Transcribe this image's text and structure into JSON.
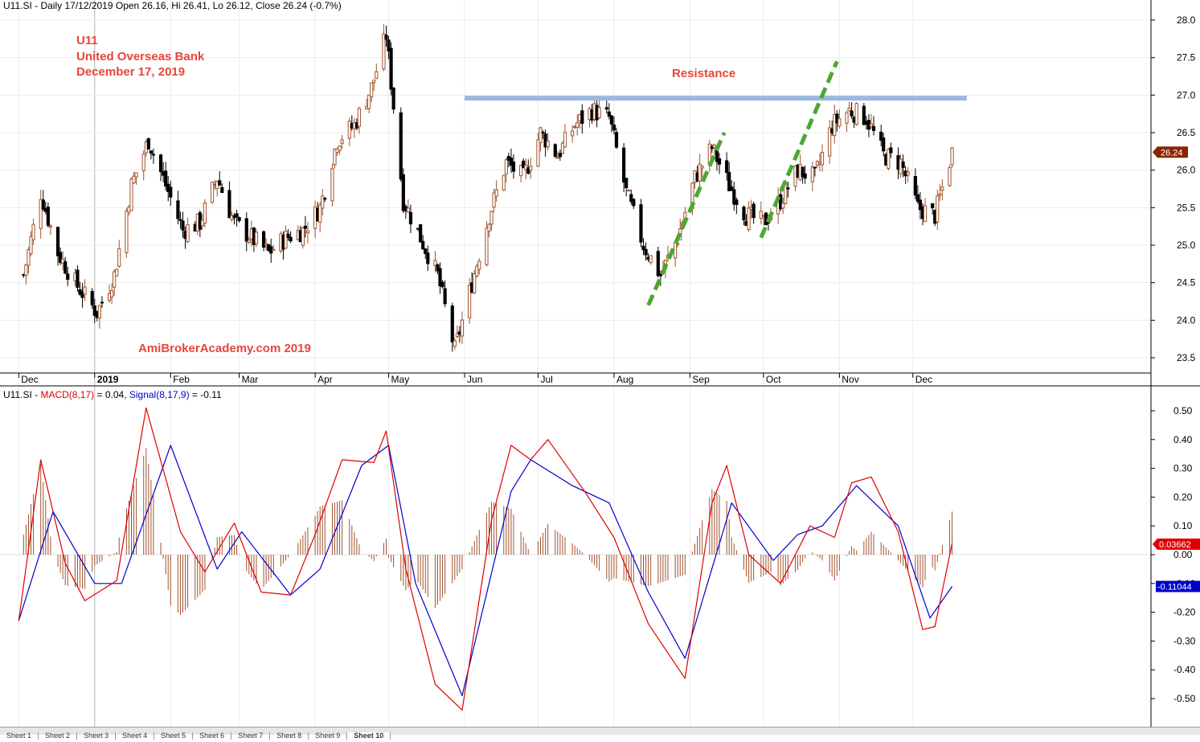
{
  "header": {
    "price_info": "U11.SI - Daily 17/12/2019 Open 26.16, Hi 26.41, Lo 26.12, Close 26.24 (-0.7%)",
    "macd_prefix": "U11.SI - ",
    "macd_label": "MACD(8,17)",
    "macd_value": " = 0.04, ",
    "signal_label": "Signal(8,17,9)",
    "signal_value": " = -0.11"
  },
  "annotations": {
    "ticker": "U11",
    "company": "United Overseas Bank",
    "date": "December 17, 2019",
    "resistance": "Resistance",
    "watermark": "AmiBrokerAcademy.com   2019"
  },
  "price_badge": "26.24",
  "macd_badge": "0.03662",
  "signal_badge": "-0.11044",
  "sheet_tabs": [
    "Sheet 1",
    "Sheet 2",
    "Sheet 3",
    "Sheet 4",
    "Sheet 5",
    "Sheet 6",
    "Sheet 7",
    "Sheet 8",
    "Sheet 9",
    "Sheet 10"
  ],
  "colors": {
    "up_candle": "#a0522d",
    "down_candle": "#000000",
    "macd": "#e00000",
    "signal": "#0000cc",
    "histogram": "#a0522d",
    "resistance_line": "#9db8e0",
    "trend_lines": "#4aa832",
    "annotation_text": "#e8453c"
  },
  "chart_data": [
    {
      "type": "candlestick",
      "title": "U11.SI - Daily 17/12/2019",
      "x_labels": [
        "Dec",
        "2019",
        "Feb",
        "Mar",
        "Apr",
        "May",
        "Jun",
        "Jul",
        "Aug",
        "Sep",
        "Oct",
        "Nov",
        "Dec"
      ],
      "y_ticks": [
        23.5,
        24.0,
        24.5,
        25.0,
        25.5,
        26.0,
        26.5,
        27.0,
        27.5,
        28.0
      ],
      "ylim": [
        23.2,
        28.25
      ],
      "last_close": 26.24,
      "resistance_level": 26.96,
      "trend_lines": [
        {
          "from": [
            "2019-08-15",
            24.2
          ],
          "to": [
            "2019-09-15",
            26.5
          ]
        },
        {
          "from": [
            "2019-09-30",
            25.1
          ],
          "to": [
            "2019-10-31",
            27.45
          ]
        }
      ],
      "closes": [
        {
          "date": "2018-12-03",
          "close": 24.6
        },
        {
          "date": "2018-12-10",
          "close": 25.7
        },
        {
          "date": "2018-12-17",
          "close": 24.9
        },
        {
          "date": "2018-12-24",
          "close": 24.5
        },
        {
          "date": "2019-01-02",
          "close": 24.1
        },
        {
          "date": "2019-01-09",
          "close": 24.6
        },
        {
          "date": "2019-01-16",
          "close": 25.8
        },
        {
          "date": "2019-01-23",
          "close": 26.4
        },
        {
          "date": "2019-01-30",
          "close": 25.8
        },
        {
          "date": "2019-02-06",
          "close": 25.2
        },
        {
          "date": "2019-02-13",
          "close": 25.3
        },
        {
          "date": "2019-02-20",
          "close": 25.9
        },
        {
          "date": "2019-02-27",
          "close": 25.3
        },
        {
          "date": "2019-03-06",
          "close": 25.1
        },
        {
          "date": "2019-03-13",
          "close": 24.9
        },
        {
          "date": "2019-03-20",
          "close": 25.1
        },
        {
          "date": "2019-03-27",
          "close": 25.2
        },
        {
          "date": "2019-04-03",
          "close": 25.5
        },
        {
          "date": "2019-04-10",
          "close": 26.4
        },
        {
          "date": "2019-04-17",
          "close": 26.6
        },
        {
          "date": "2019-04-24",
          "close": 27.1
        },
        {
          "date": "2019-04-30",
          "close": 27.8
        },
        {
          "date": "2019-05-07",
          "close": 25.6
        },
        {
          "date": "2019-05-14",
          "close": 25.1
        },
        {
          "date": "2019-05-21",
          "close": 24.6
        },
        {
          "date": "2019-05-28",
          "close": 23.6
        },
        {
          "date": "2019-06-04",
          "close": 24.5
        },
        {
          "date": "2019-06-11",
          "close": 25.4
        },
        {
          "date": "2019-06-18",
          "close": 26.1
        },
        {
          "date": "2019-06-25",
          "close": 25.9
        },
        {
          "date": "2019-07-02",
          "close": 26.5
        },
        {
          "date": "2019-07-09",
          "close": 26.2
        },
        {
          "date": "2019-07-16",
          "close": 26.6
        },
        {
          "date": "2019-07-23",
          "close": 26.8
        },
        {
          "date": "2019-07-30",
          "close": 26.7
        },
        {
          "date": "2019-08-06",
          "close": 25.7
        },
        {
          "date": "2019-08-13",
          "close": 25.0
        },
        {
          "date": "2019-08-20",
          "close": 24.6
        },
        {
          "date": "2019-08-27",
          "close": 25.1
        },
        {
          "date": "2019-09-03",
          "close": 25.9
        },
        {
          "date": "2019-09-10",
          "close": 26.3
        },
        {
          "date": "2019-09-17",
          "close": 25.8
        },
        {
          "date": "2019-09-24",
          "close": 25.4
        },
        {
          "date": "2019-10-01",
          "close": 25.3
        },
        {
          "date": "2019-10-08",
          "close": 25.6
        },
        {
          "date": "2019-10-15",
          "close": 26.0
        },
        {
          "date": "2019-10-22",
          "close": 25.9
        },
        {
          "date": "2019-10-29",
          "close": 26.6
        },
        {
          "date": "2019-11-05",
          "close": 26.8
        },
        {
          "date": "2019-11-12",
          "close": 26.7
        },
        {
          "date": "2019-11-19",
          "close": 26.2
        },
        {
          "date": "2019-11-26",
          "close": 26.1
        },
        {
          "date": "2019-12-03",
          "close": 25.5
        },
        {
          "date": "2019-12-10",
          "close": 25.4
        },
        {
          "date": "2019-12-17",
          "close": 26.24
        }
      ]
    },
    {
      "type": "line",
      "title": "MACD(8,17) = 0.04, Signal(8,17,9) = -0.11",
      "y_ticks": [
        -0.5,
        -0.4,
        -0.3,
        -0.2,
        -0.1,
        0.0,
        0.1,
        0.2,
        0.3,
        0.4,
        0.5
      ],
      "ylim": [
        -0.55,
        0.55
      ],
      "series": [
        {
          "name": "MACD(8,17)",
          "values": [
            [
              "2018-12-01",
              -0.23
            ],
            [
              "2018-12-10",
              0.33
            ],
            [
              "2018-12-20",
              -0.03
            ],
            [
              "2018-12-28",
              -0.16
            ],
            [
              "2019-01-10",
              -0.09
            ],
            [
              "2019-01-22",
              0.51
            ],
            [
              "2019-02-05",
              0.08
            ],
            [
              "2019-02-15",
              -0.06
            ],
            [
              "2019-02-27",
              0.11
            ],
            [
              "2019-03-10",
              -0.13
            ],
            [
              "2019-03-22",
              -0.14
            ],
            [
              "2019-04-01",
              0.07
            ],
            [
              "2019-04-12",
              0.33
            ],
            [
              "2019-04-25",
              0.32
            ],
            [
              "2019-04-30",
              0.43
            ],
            [
              "2019-05-08",
              -0.05
            ],
            [
              "2019-05-20",
              -0.45
            ],
            [
              "2019-05-31",
              -0.54
            ],
            [
              "2019-06-12",
              0.12
            ],
            [
              "2019-06-20",
              0.38
            ],
            [
              "2019-06-28",
              0.33
            ],
            [
              "2019-07-05",
              0.4
            ],
            [
              "2019-07-20",
              0.22
            ],
            [
              "2019-08-01",
              0.06
            ],
            [
              "2019-08-15",
              -0.24
            ],
            [
              "2019-08-30",
              -0.43
            ],
            [
              "2019-09-10",
              0.18
            ],
            [
              "2019-09-16",
              0.31
            ],
            [
              "2019-09-25",
              0.0
            ],
            [
              "2019-10-08",
              -0.1
            ],
            [
              "2019-10-20",
              0.1
            ],
            [
              "2019-10-30",
              0.06
            ],
            [
              "2019-11-06",
              0.25
            ],
            [
              "2019-11-14",
              0.27
            ],
            [
              "2019-11-25",
              0.08
            ],
            [
              "2019-12-05",
              -0.26
            ],
            [
              "2019-12-10",
              -0.25
            ],
            [
              "2019-12-17",
              0.04
            ]
          ]
        },
        {
          "name": "Signal(8,17,9)",
          "values": [
            [
              "2018-12-01",
              -0.23
            ],
            [
              "2018-12-15",
              0.15
            ],
            [
              "2019-01-01",
              -0.1
            ],
            [
              "2019-01-12",
              -0.1
            ],
            [
              "2019-02-01",
              0.38
            ],
            [
              "2019-02-20",
              -0.05
            ],
            [
              "2019-03-02",
              0.08
            ],
            [
              "2019-03-22",
              -0.14
            ],
            [
              "2019-04-03",
              -0.05
            ],
            [
              "2019-04-20",
              0.31
            ],
            [
              "2019-05-01",
              0.38
            ],
            [
              "2019-05-12",
              -0.1
            ],
            [
              "2019-05-31",
              -0.49
            ],
            [
              "2019-06-20",
              0.22
            ],
            [
              "2019-06-28",
              0.33
            ],
            [
              "2019-07-15",
              0.24
            ],
            [
              "2019-07-30",
              0.18
            ],
            [
              "2019-08-15",
              -0.13
            ],
            [
              "2019-08-30",
              -0.36
            ],
            [
              "2019-09-18",
              0.18
            ],
            [
              "2019-10-05",
              -0.02
            ],
            [
              "2019-10-15",
              0.07
            ],
            [
              "2019-10-25",
              0.1
            ],
            [
              "2019-11-08",
              0.24
            ],
            [
              "2019-11-25",
              0.1
            ],
            [
              "2019-12-08",
              -0.22
            ],
            [
              "2019-12-17",
              -0.11
            ]
          ]
        }
      ]
    }
  ]
}
